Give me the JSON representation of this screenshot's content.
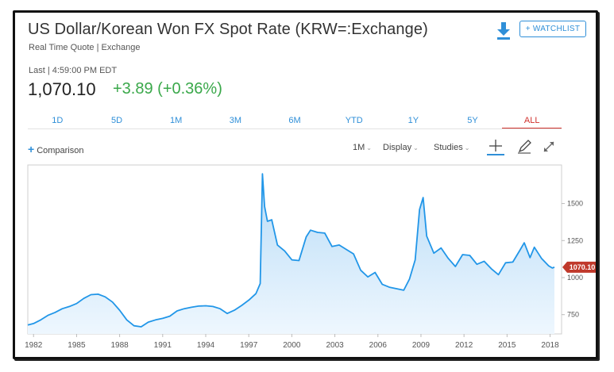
{
  "header": {
    "title": "US Dollar/Korean Won FX Spot Rate (KRW=:Exchange)",
    "subtitle": "Real Time Quote | Exchange",
    "watchlist_label": "+ WATCHLIST",
    "download_icon": "download-icon"
  },
  "quote": {
    "last_label": "Last | 4:59:00 PM EDT",
    "price": "1,070.10",
    "change": "+3.89 (+0.36%)",
    "change_color": "#3aa84a"
  },
  "tabs": [
    {
      "label": "1D",
      "active": false
    },
    {
      "label": "5D",
      "active": false
    },
    {
      "label": "1M",
      "active": false
    },
    {
      "label": "3M",
      "active": false
    },
    {
      "label": "6M",
      "active": false
    },
    {
      "label": "YTD",
      "active": false
    },
    {
      "label": "1Y",
      "active": false
    },
    {
      "label": "5Y",
      "active": false
    },
    {
      "label": "ALL",
      "active": true
    }
  ],
  "toolbar": {
    "comparison_label": "Comparison",
    "interval_label": "1M",
    "display_label": "Display",
    "studies_label": "Studies",
    "icons": [
      "crosshair-icon",
      "pencil-icon",
      "expand-icon"
    ]
  },
  "chart_data": {
    "type": "area",
    "title": "",
    "xlabel": "",
    "ylabel": "",
    "x_ticks": [
      "1982",
      "1985",
      "1988",
      "1991",
      "1994",
      "1997",
      "2000",
      "2003",
      "2006",
      "2009",
      "2012",
      "2015",
      "2018"
    ],
    "y_ticks": [
      "750",
      "1000",
      "1250",
      "1500"
    ],
    "ylim": [
      620,
      1760
    ],
    "xlim": [
      1981.6,
      2018.8
    ],
    "last_value_label": "1070.10",
    "line_color": "#2196e8",
    "fill_color": "#d6ebfb",
    "label_color": "#c0392b",
    "grid": false,
    "series": [
      {
        "points": [
          [
            1981.6,
            680
          ],
          [
            1982.0,
            690
          ],
          [
            1982.5,
            715
          ],
          [
            1983.0,
            745
          ],
          [
            1983.5,
            765
          ],
          [
            1984.0,
            790
          ],
          [
            1984.5,
            805
          ],
          [
            1985.0,
            825
          ],
          [
            1985.5,
            860
          ],
          [
            1986.0,
            885
          ],
          [
            1986.5,
            888
          ],
          [
            1987.0,
            870
          ],
          [
            1987.5,
            835
          ],
          [
            1988.0,
            780
          ],
          [
            1988.5,
            715
          ],
          [
            1989.0,
            675
          ],
          [
            1989.5,
            668
          ],
          [
            1990.0,
            700
          ],
          [
            1990.5,
            715
          ],
          [
            1991.0,
            725
          ],
          [
            1991.5,
            740
          ],
          [
            1992.0,
            775
          ],
          [
            1992.5,
            790
          ],
          [
            1993.0,
            800
          ],
          [
            1993.5,
            808
          ],
          [
            1994.0,
            810
          ],
          [
            1994.5,
            805
          ],
          [
            1995.0,
            790
          ],
          [
            1995.5,
            758
          ],
          [
            1996.0,
            780
          ],
          [
            1996.5,
            812
          ],
          [
            1997.0,
            848
          ],
          [
            1997.5,
            892
          ],
          [
            1997.8,
            960
          ],
          [
            1997.95,
            1700
          ],
          [
            1998.1,
            1480
          ],
          [
            1998.3,
            1380
          ],
          [
            1998.6,
            1390
          ],
          [
            1999.0,
            1220
          ],
          [
            1999.5,
            1180
          ],
          [
            2000.0,
            1120
          ],
          [
            2000.5,
            1115
          ],
          [
            2001.0,
            1275
          ],
          [
            2001.3,
            1320
          ],
          [
            2001.8,
            1305
          ],
          [
            2002.3,
            1300
          ],
          [
            2002.8,
            1210
          ],
          [
            2003.3,
            1220
          ],
          [
            2003.8,
            1190
          ],
          [
            2004.3,
            1160
          ],
          [
            2004.8,
            1050
          ],
          [
            2005.3,
            1005
          ],
          [
            2005.8,
            1035
          ],
          [
            2006.3,
            955
          ],
          [
            2006.8,
            935
          ],
          [
            2007.3,
            925
          ],
          [
            2007.8,
            915
          ],
          [
            2008.2,
            990
          ],
          [
            2008.6,
            1120
          ],
          [
            2008.9,
            1460
          ],
          [
            2009.15,
            1540
          ],
          [
            2009.4,
            1280
          ],
          [
            2009.9,
            1165
          ],
          [
            2010.4,
            1200
          ],
          [
            2010.9,
            1130
          ],
          [
            2011.4,
            1075
          ],
          [
            2011.9,
            1155
          ],
          [
            2012.4,
            1150
          ],
          [
            2012.9,
            1090
          ],
          [
            2013.4,
            1110
          ],
          [
            2013.9,
            1060
          ],
          [
            2014.4,
            1020
          ],
          [
            2014.9,
            1100
          ],
          [
            2015.4,
            1105
          ],
          [
            2015.9,
            1185
          ],
          [
            2016.2,
            1235
          ],
          [
            2016.6,
            1135
          ],
          [
            2016.9,
            1205
          ],
          [
            2017.4,
            1130
          ],
          [
            2017.9,
            1080
          ],
          [
            2018.15,
            1065
          ],
          [
            2018.3,
            1070
          ]
        ]
      }
    ]
  }
}
